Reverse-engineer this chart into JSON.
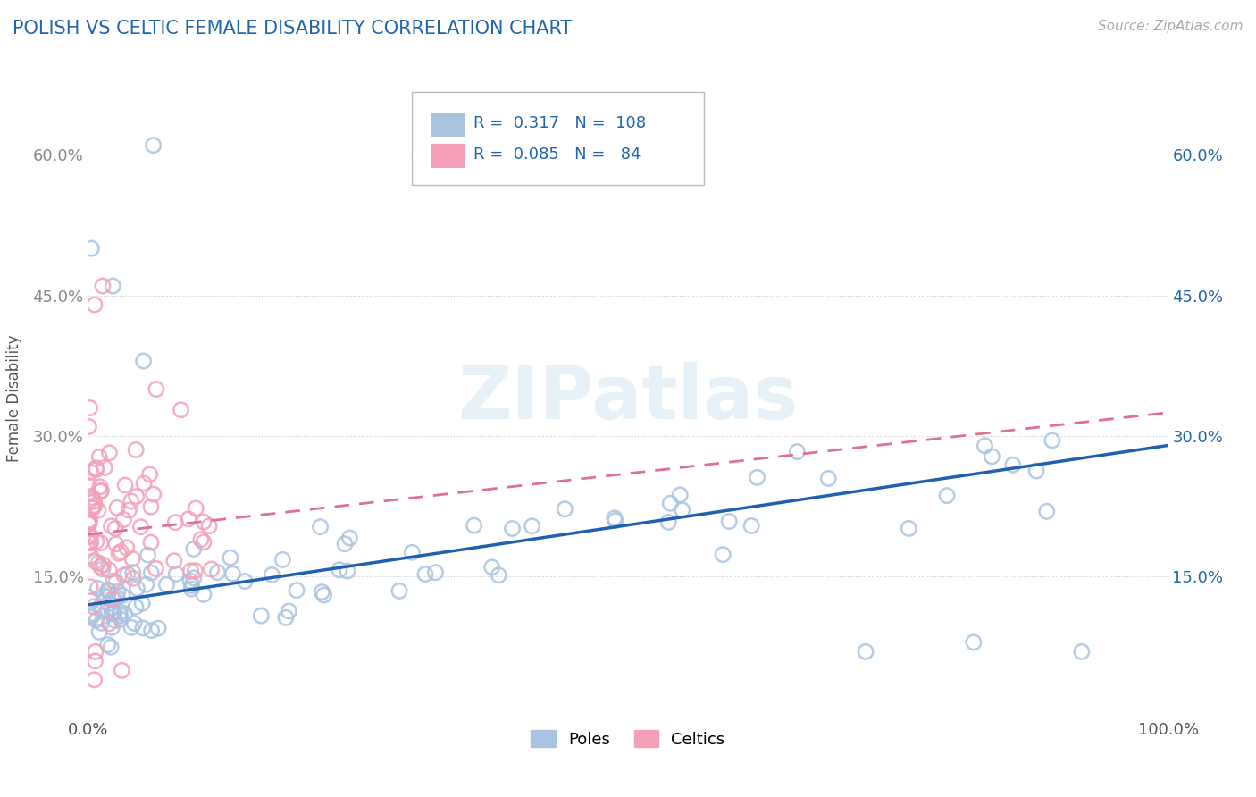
{
  "title": "POLISH VS CELTIC FEMALE DISABILITY CORRELATION CHART",
  "source": "Source: ZipAtlas.com",
  "ylabel": "Female Disability",
  "xlim": [
    0.0,
    1.0
  ],
  "ylim": [
    0.0,
    0.68
  ],
  "xtick_labels": [
    "0.0%",
    "100.0%"
  ],
  "ytick_positions": [
    0.15,
    0.3,
    0.45,
    0.6
  ],
  "ytick_labels": [
    "15.0%",
    "30.0%",
    "45.0%",
    "60.0%"
  ],
  "poles_color": "#a8c4e0",
  "celtics_color": "#f4a0b8",
  "poles_line_color": "#2060b0",
  "celtics_line_color": "#e07090",
  "poles_R": 0.317,
  "poles_N": 108,
  "celtics_R": 0.085,
  "celtics_N": 84,
  "legend_label_poles": "Poles",
  "legend_label_celtics": "Celtics",
  "watermark": "ZIPatlas",
  "label_color_blue": "#2166ac",
  "label_color_gray": "#888888",
  "background_color": "#ffffff",
  "grid_color": "#cccccc",
  "title_color": "#2166ac"
}
